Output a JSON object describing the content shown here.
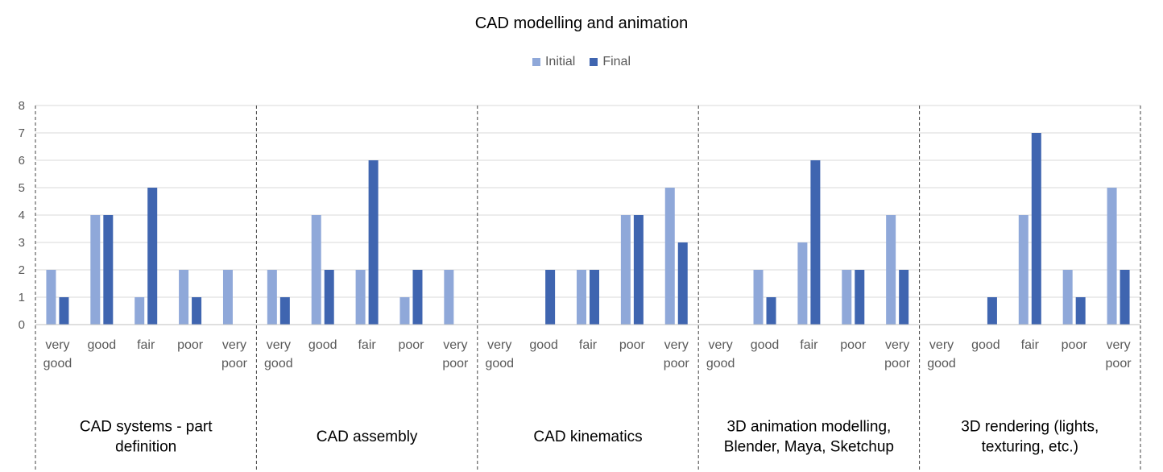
{
  "chart_data": {
    "type": "bar",
    "title": "CAD modelling and animation",
    "ylim": [
      0,
      8
    ],
    "yticks": [
      0,
      1,
      2,
      3,
      4,
      5,
      6,
      7,
      8
    ],
    "grid": true,
    "legend_position": "top-center",
    "categories": [
      "very good",
      "good",
      "fair",
      "poor",
      "very poor"
    ],
    "series": [
      {
        "name": "Initial",
        "color": "#8FA8D9"
      },
      {
        "name": "Final",
        "color": "#3F65B0"
      }
    ],
    "groups": [
      {
        "label": "CAD systems - part definition",
        "initial": [
          2,
          4,
          1,
          2,
          2
        ],
        "final": [
          1,
          4,
          5,
          1,
          0
        ]
      },
      {
        "label": "CAD assembly",
        "initial": [
          2,
          4,
          2,
          1,
          2
        ],
        "final": [
          1,
          2,
          6,
          2,
          0
        ]
      },
      {
        "label": "CAD kinematics",
        "initial": [
          0,
          0,
          2,
          4,
          5
        ],
        "final": [
          0,
          2,
          2,
          4,
          3
        ]
      },
      {
        "label": "3D animation modelling, Blender, Maya, Sketchup",
        "initial": [
          0,
          2,
          3,
          2,
          4
        ],
        "final": [
          0,
          1,
          6,
          2,
          2
        ]
      },
      {
        "label": "3D rendering (lights, texturing, etc.)",
        "initial": [
          0,
          0,
          4,
          2,
          5
        ],
        "final": [
          0,
          1,
          7,
          1,
          2
        ]
      }
    ]
  }
}
